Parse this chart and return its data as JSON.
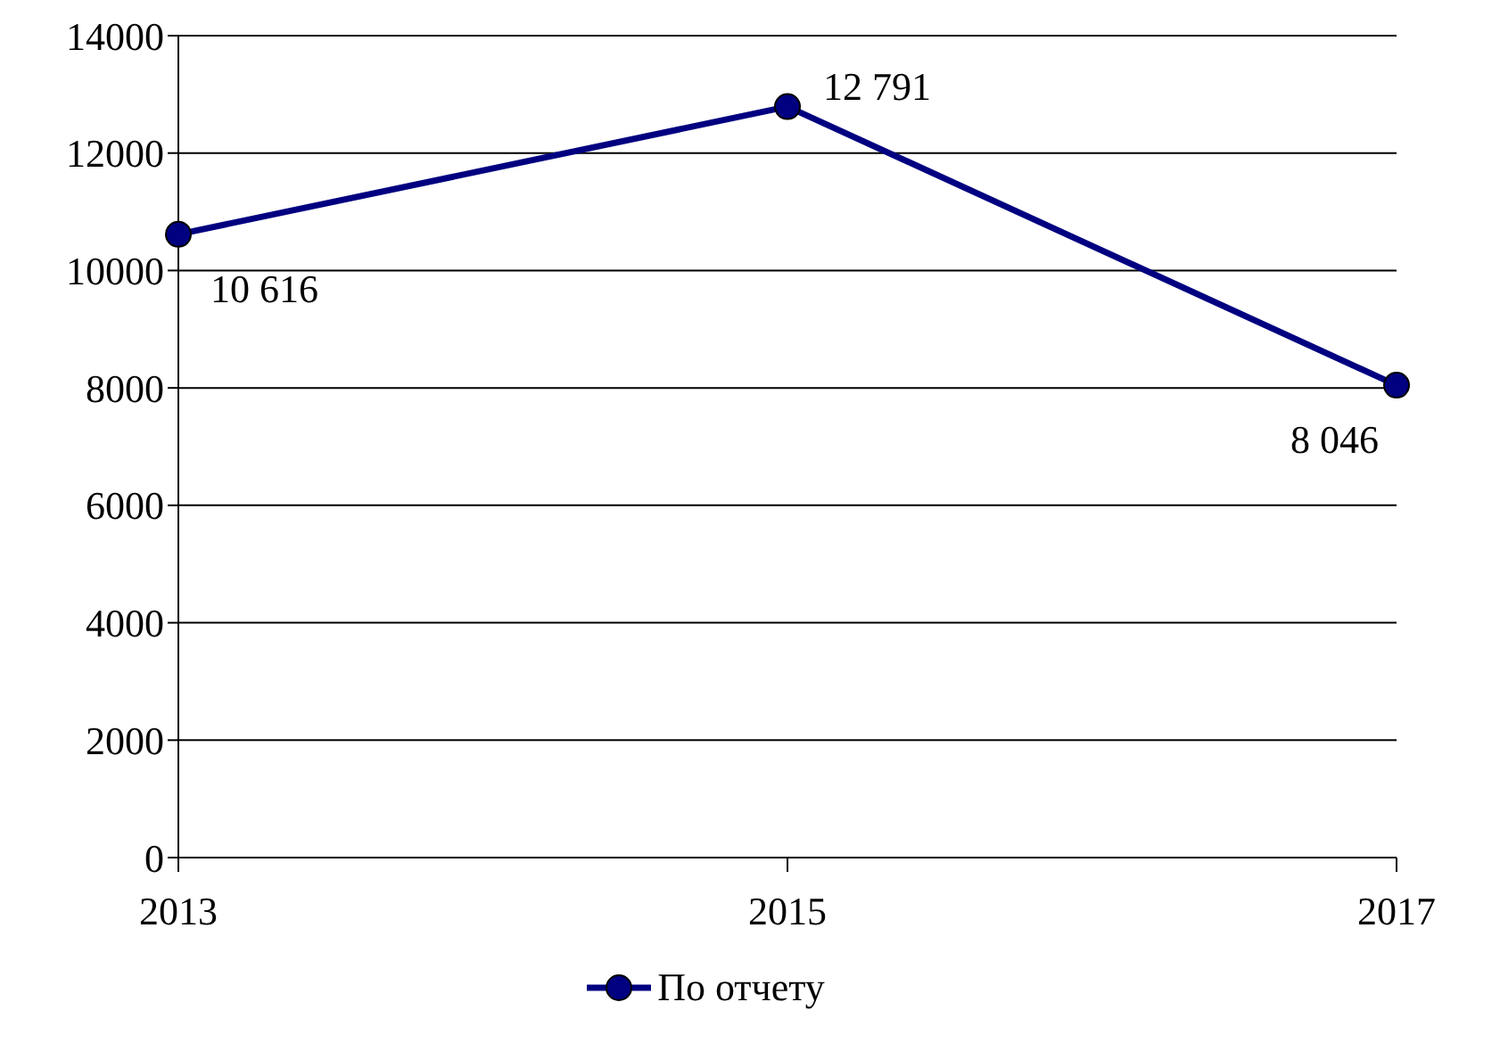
{
  "chart_data": {
    "type": "line",
    "categories": [
      "2013",
      "2015",
      "2017"
    ],
    "series": [
      {
        "name": "По отчету",
        "color": "#000080",
        "values": [
          10616,
          12791,
          8046
        ],
        "value_labels": [
          "10 616",
          "12 791",
          "8 046"
        ]
      }
    ],
    "ylim": [
      0,
      14000
    ],
    "yticks": [
      0,
      2000,
      4000,
      6000,
      8000,
      10000,
      12000,
      14000
    ],
    "grid": "y",
    "legend": "bottom",
    "marker": "circle",
    "line_style": "solid"
  }
}
